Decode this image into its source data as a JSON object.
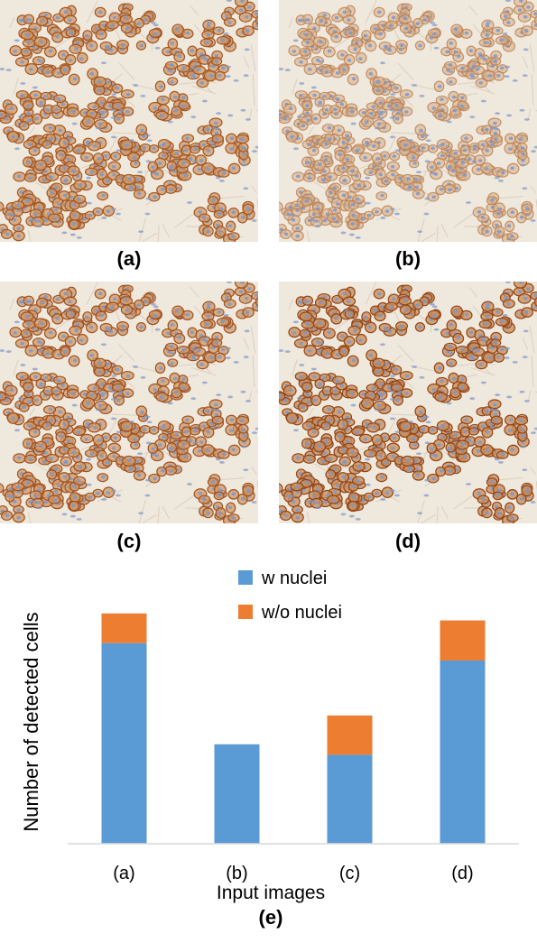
{
  "panels": [
    {
      "label": "(a)",
      "variant": "a"
    },
    {
      "label": "(b)",
      "variant": "b"
    },
    {
      "label": "(c)",
      "variant": "c"
    },
    {
      "label": "(d)",
      "variant": "d"
    }
  ],
  "colors": {
    "w_nuclei": "#5b9bd5",
    "wo_nuclei": "#ed7d31",
    "stroma": "#efe8dc",
    "membrane": "#9a4e20",
    "nucleus": "#7d96c8"
  },
  "chart_data": {
    "type": "bar",
    "stacked": true,
    "categories": [
      "(a)",
      "(b)",
      "(c)",
      "(d)"
    ],
    "series": [
      {
        "name": "w nuclei",
        "values": [
          230,
          114,
          102,
          210
        ]
      },
      {
        "name": "w/o nuclei",
        "values": [
          34,
          0,
          45,
          46
        ]
      }
    ],
    "title": "",
    "xlabel": "Input images",
    "ylabel": "Number of detected cells",
    "ylim": [
      0,
      300
    ],
    "grid": false,
    "legend_position": "top-center",
    "panel_label": "(e)"
  }
}
